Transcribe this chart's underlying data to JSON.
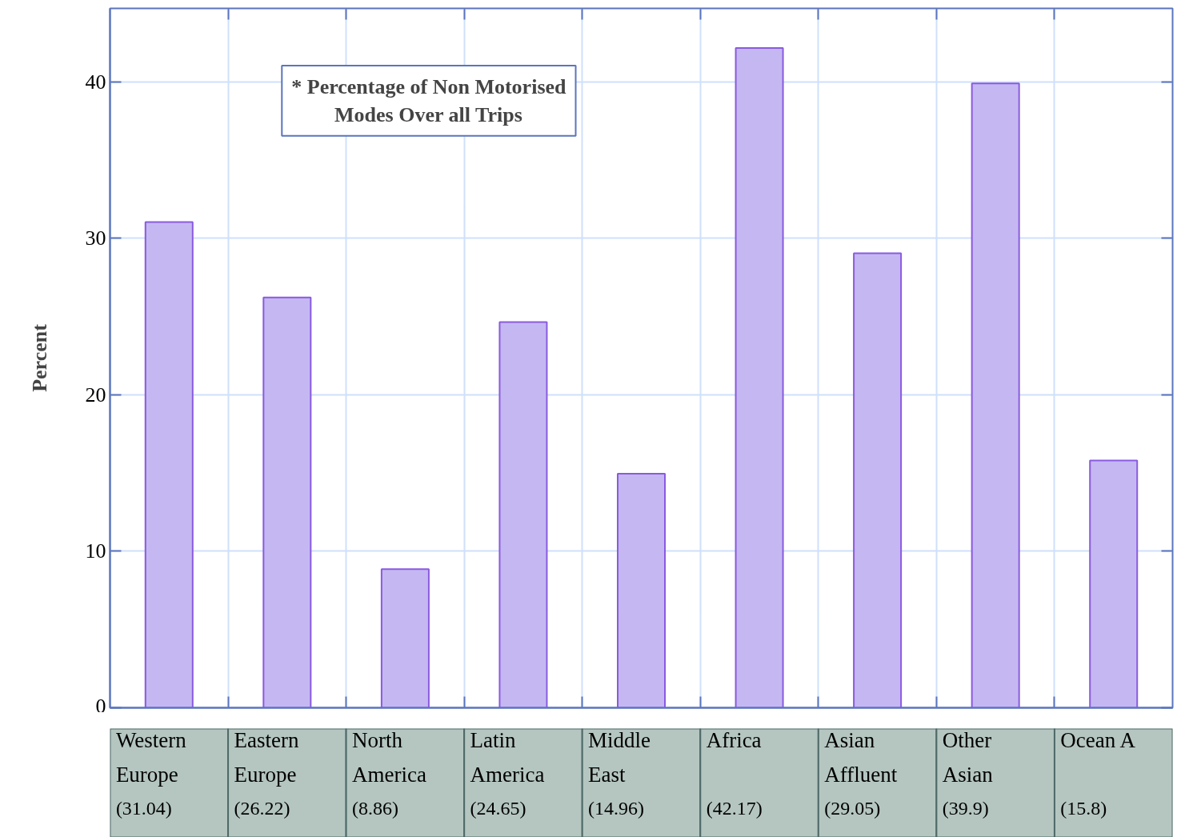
{
  "chart_data": {
    "type": "bar",
    "ylabel": "Percent",
    "categories": [
      "Western Europe",
      "Eastern Europe",
      "North America",
      "Latin America",
      "Middle East",
      "Africa",
      "Asian Affluent",
      "Other Asian",
      "Ocean A"
    ],
    "values": [
      31.04,
      26.22,
      8.86,
      24.65,
      14.96,
      42.17,
      29.05,
      39.9,
      15.8
    ],
    "value_labels": [
      "(31.04)",
      "(26.22)",
      "(8.86)",
      "(24.65)",
      "(14.96)",
      "(42.17)",
      "(29.05)",
      "(39.9)",
      "(15.8)"
    ],
    "color": "#c5b8f2",
    "ylim": [
      0,
      44.7
    ],
    "yticks": [
      0,
      10,
      20,
      30,
      40
    ],
    "grid": true,
    "tick_labels": "y",
    "annotations": [
      "* Percentage of Non Motorised Modes Over all Trips"
    ]
  }
}
